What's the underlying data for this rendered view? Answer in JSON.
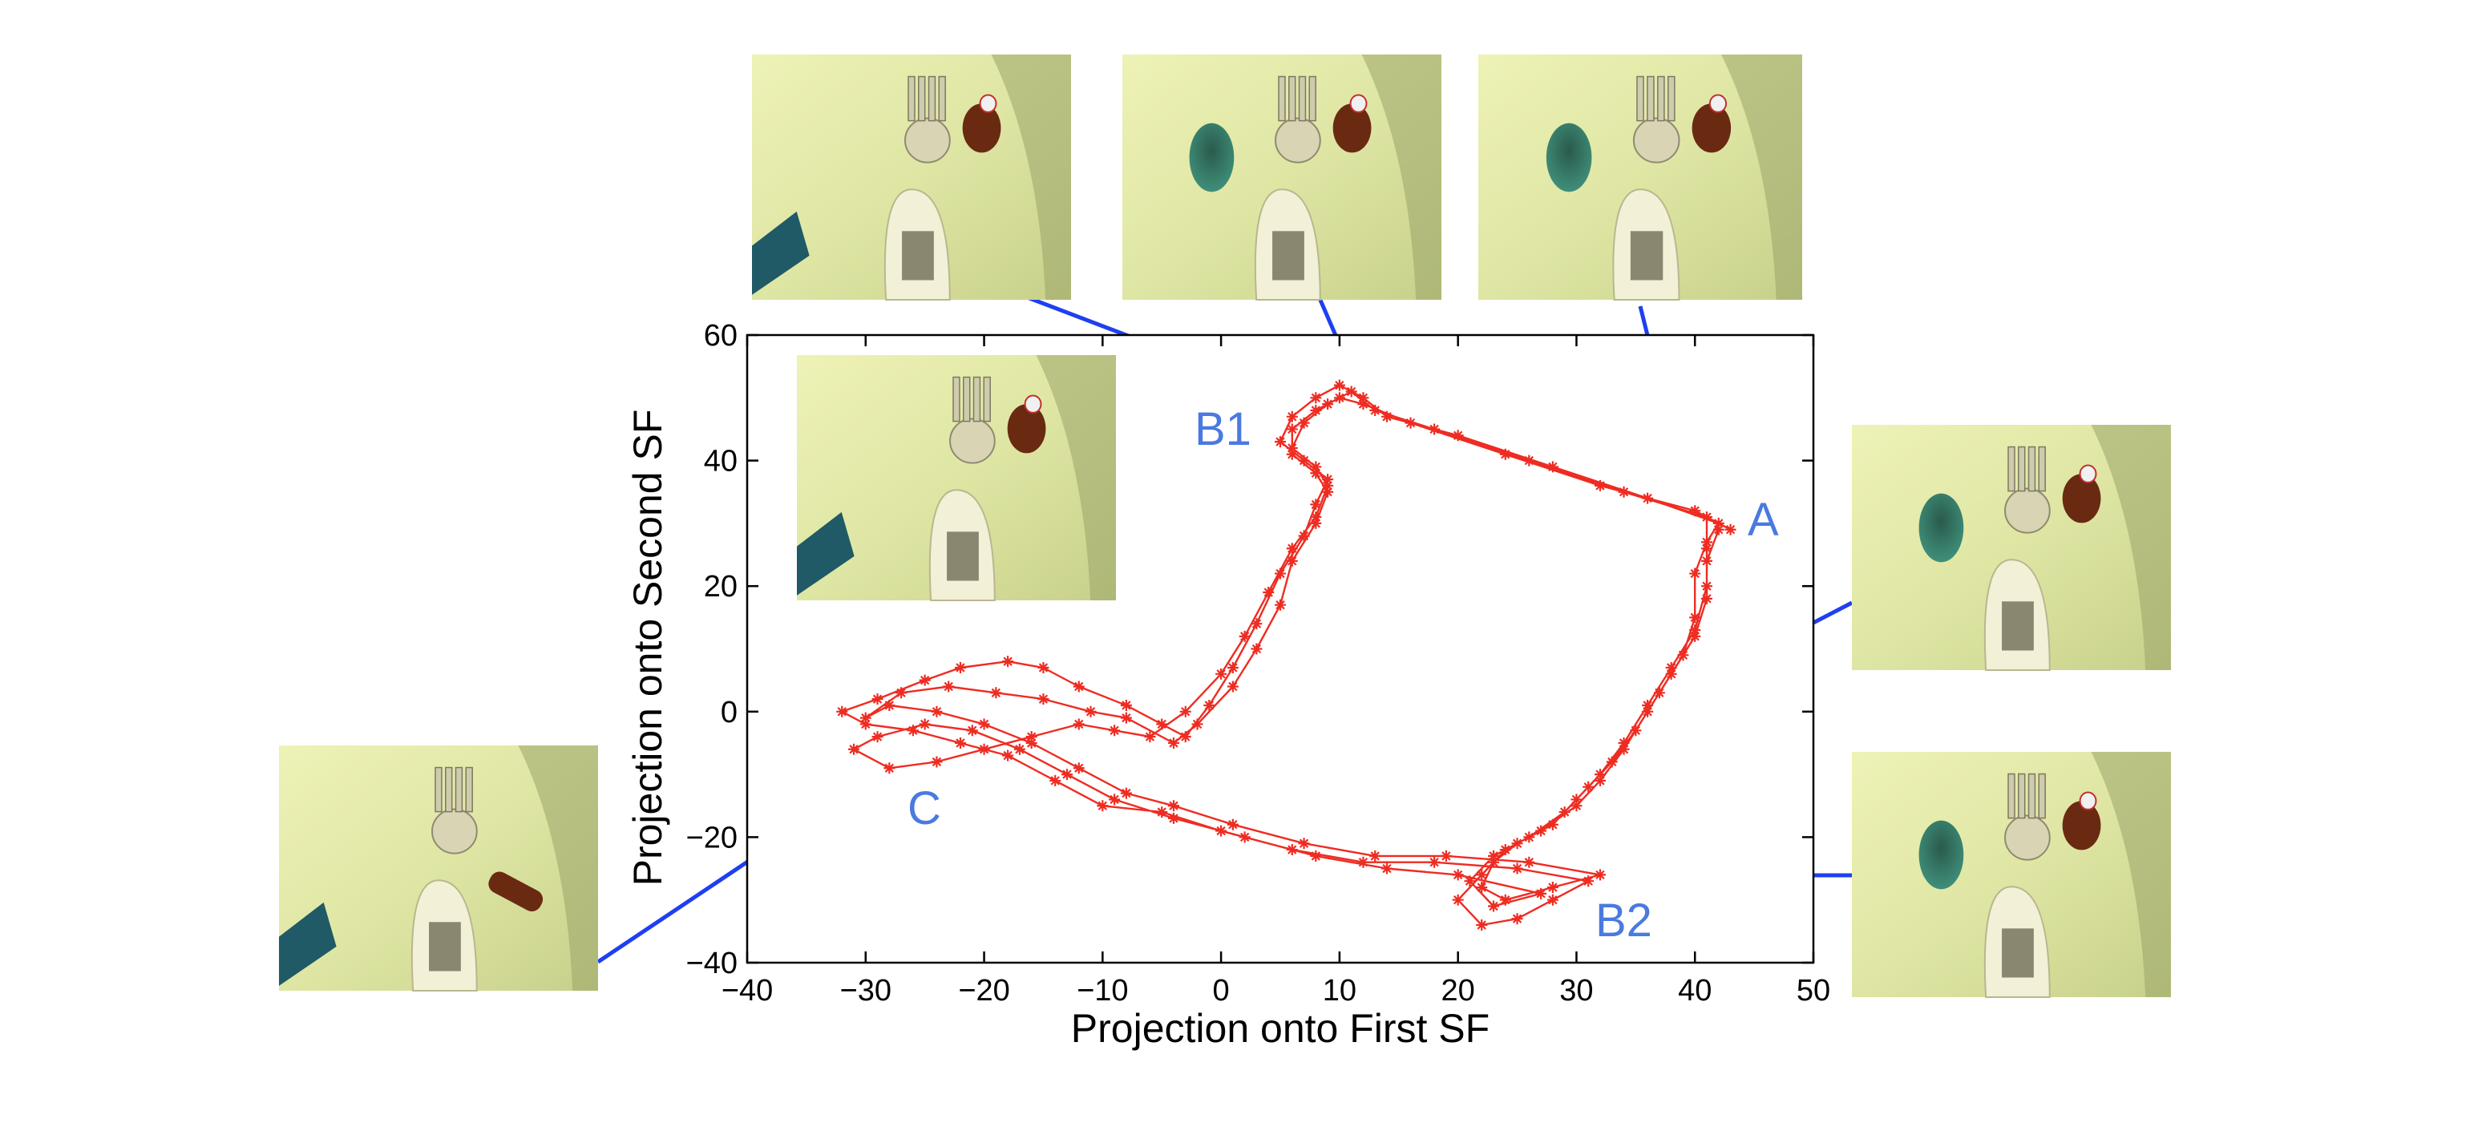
{
  "colors": {
    "trajectory": "#ee2c22",
    "leader": "#1f3ff0",
    "point_label": "#4a7ae0",
    "axis": "#000000"
  },
  "chart_data": {
    "type": "line",
    "marker": "star",
    "xlabel": "Projection onto First SF",
    "ylabel": "Projection onto Second SF",
    "xlim": [
      -40,
      50
    ],
    "ylim": [
      -40,
      60
    ],
    "xticks": [
      -40,
      -30,
      -20,
      -10,
      0,
      10,
      20,
      30,
      40,
      50
    ],
    "yticks": [
      -40,
      -20,
      0,
      20,
      40,
      60
    ],
    "grid": false,
    "legend": "none",
    "labeled_points": [
      {
        "label": "A",
        "x": 42,
        "y": 29
      },
      {
        "label": "B1",
        "x": 9,
        "y": 50
      },
      {
        "label": "B2",
        "x": 22,
        "y": -27
      },
      {
        "label": "C",
        "x": -28,
        "y": -3
      }
    ],
    "series": [
      {
        "points": [
          [
            42,
            29
          ],
          [
            41,
            24
          ],
          [
            41,
            18
          ],
          [
            40,
            12
          ],
          [
            38,
            6
          ],
          [
            36,
            0
          ],
          [
            34,
            -6
          ],
          [
            32,
            -11
          ],
          [
            30,
            -15
          ],
          [
            27,
            -19
          ],
          [
            24,
            -22
          ],
          [
            22,
            -26
          ],
          [
            20,
            -30
          ],
          [
            22,
            -34
          ],
          [
            25,
            -33
          ],
          [
            28,
            -30
          ],
          [
            31,
            -27
          ],
          [
            25,
            -25
          ],
          [
            18,
            -24
          ],
          [
            12,
            -24
          ],
          [
            6,
            -22
          ],
          [
            0,
            -19
          ],
          [
            -5,
            -16
          ],
          [
            -10,
            -15
          ],
          [
            -14,
            -11
          ],
          [
            -18,
            -7
          ],
          [
            -22,
            -5
          ],
          [
            -26,
            -3
          ],
          [
            -30,
            -2
          ],
          [
            -32,
            0
          ],
          [
            -29,
            2
          ],
          [
            -25,
            5
          ],
          [
            -22,
            7
          ],
          [
            -18,
            8
          ],
          [
            -15,
            7
          ],
          [
            -12,
            4
          ],
          [
            -8,
            1
          ],
          [
            -5,
            -2
          ],
          [
            -3,
            -4
          ],
          [
            -1,
            1
          ],
          [
            1,
            7
          ],
          [
            3,
            14
          ],
          [
            5,
            22
          ],
          [
            7,
            28
          ],
          [
            8,
            33
          ],
          [
            9,
            37
          ],
          [
            7,
            40
          ],
          [
            5,
            43
          ],
          [
            6,
            47
          ],
          [
            8,
            50
          ],
          [
            10,
            52
          ],
          [
            12,
            50
          ],
          [
            14,
            47
          ],
          [
            20,
            44
          ],
          [
            28,
            39
          ],
          [
            36,
            34
          ],
          [
            42,
            30
          ],
          [
            41,
            27
          ],
          [
            40,
            22
          ],
          [
            40,
            15
          ],
          [
            39,
            9
          ],
          [
            37,
            3
          ],
          [
            35,
            -3
          ],
          [
            33,
            -8
          ],
          [
            31,
            -12
          ],
          [
            29,
            -16
          ],
          [
            26,
            -20
          ],
          [
            23,
            -23
          ],
          [
            21,
            -27
          ],
          [
            23,
            -31
          ],
          [
            27,
            -29
          ],
          [
            20,
            -26
          ],
          [
            14,
            -25
          ],
          [
            8,
            -23
          ],
          [
            2,
            -20
          ],
          [
            -4,
            -17
          ],
          [
            -9,
            -14
          ],
          [
            -13,
            -10
          ],
          [
            -17,
            -6
          ],
          [
            -21,
            -3
          ],
          [
            -25,
            -2
          ],
          [
            -29,
            -4
          ],
          [
            -31,
            -6
          ],
          [
            -28,
            -9
          ],
          [
            -24,
            -8
          ],
          [
            -20,
            -6
          ],
          [
            -16,
            -4
          ],
          [
            -12,
            -2
          ],
          [
            -9,
            -3
          ],
          [
            -6,
            -4
          ],
          [
            -3,
            0
          ],
          [
            0,
            6
          ],
          [
            2,
            12
          ],
          [
            4,
            19
          ],
          [
            6,
            26
          ],
          [
            8,
            31
          ],
          [
            9,
            36
          ],
          [
            8,
            39
          ],
          [
            6,
            42
          ],
          [
            7,
            46
          ],
          [
            9,
            49
          ],
          [
            11,
            51
          ],
          [
            13,
            48
          ],
          [
            18,
            45
          ],
          [
            26,
            40
          ],
          [
            34,
            35
          ],
          [
            41,
            31
          ],
          [
            41,
            26
          ],
          [
            41,
            20
          ],
          [
            40,
            13
          ],
          [
            38,
            7
          ],
          [
            36,
            1
          ],
          [
            34,
            -5
          ],
          [
            32,
            -10
          ],
          [
            30,
            -14
          ],
          [
            28,
            -18
          ],
          [
            25,
            -21
          ],
          [
            23,
            -24
          ],
          [
            22,
            -28
          ],
          [
            24,
            -30
          ],
          [
            28,
            -28
          ],
          [
            32,
            -26
          ],
          [
            26,
            -24
          ],
          [
            19,
            -23
          ],
          [
            13,
            -23
          ],
          [
            7,
            -21
          ],
          [
            1,
            -18
          ],
          [
            -4,
            -15
          ],
          [
            -8,
            -13
          ],
          [
            -12,
            -9
          ],
          [
            -16,
            -5
          ],
          [
            -20,
            -2
          ],
          [
            -24,
            0
          ],
          [
            -28,
            1
          ],
          [
            -30,
            -1
          ],
          [
            -27,
            3
          ],
          [
            -23,
            4
          ],
          [
            -19,
            3
          ],
          [
            -15,
            2
          ],
          [
            -11,
            0
          ],
          [
            -8,
            -1
          ],
          [
            -4,
            -5
          ],
          [
            -2,
            -2
          ],
          [
            1,
            4
          ],
          [
            3,
            10
          ],
          [
            5,
            17
          ],
          [
            6,
            24
          ],
          [
            8,
            30
          ],
          [
            9,
            35
          ],
          [
            8,
            38
          ],
          [
            6,
            41
          ],
          [
            6,
            45
          ],
          [
            8,
            48
          ],
          [
            10,
            50
          ],
          [
            12,
            49
          ],
          [
            16,
            46
          ],
          [
            24,
            41
          ],
          [
            32,
            36
          ],
          [
            40,
            32
          ],
          [
            43,
            29
          ]
        ]
      }
    ]
  },
  "annotation_labels": {
    "A": "A",
    "B1": "B1",
    "B2": "B2",
    "C": "C"
  },
  "photo_panels": [
    {
      "id": "panel-b1-top",
      "points_to": "B1",
      "scene": "bottle-only"
    },
    {
      "id": "panel-b1-mid",
      "points_to": "B1",
      "scene": "cup-and-bottle"
    },
    {
      "id": "panel-a",
      "points_to": "A",
      "scene": "cup-and-bottle"
    },
    {
      "id": "panel-ascent",
      "points_to": "ascent",
      "scene": "bottle-grasp"
    },
    {
      "id": "panel-right-upper",
      "points_to": "A-descent",
      "scene": "cup-and-bottle"
    },
    {
      "id": "panel-b2",
      "points_to": "B2",
      "scene": "cup-and-bottle"
    },
    {
      "id": "panel-c",
      "points_to": "C",
      "scene": "bottle-lying"
    }
  ]
}
